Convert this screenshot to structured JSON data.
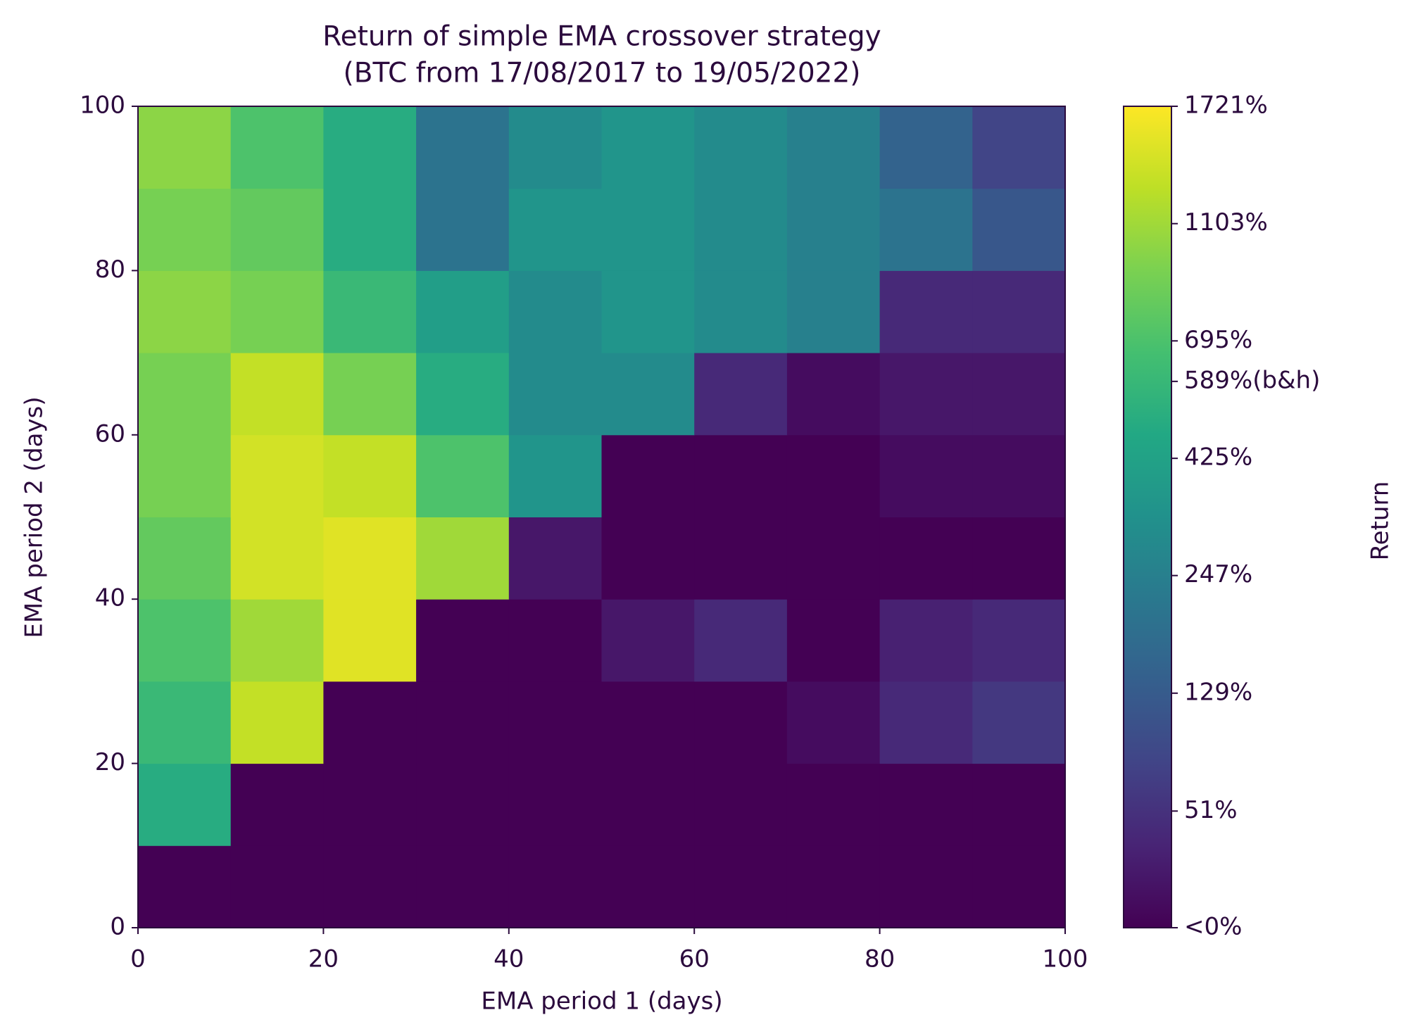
{
  "chart_data": {
    "type": "heatmap",
    "title": "Return of simple EMA crossover strategy",
    "subtitle": "(BTC from 17/08/2017 to 19/05/2022)",
    "x_label": "EMA period 1 (days)",
    "y_label": "EMA period 2 (days)",
    "x": [
      5,
      15,
      25,
      35,
      45,
      55,
      65,
      75,
      85,
      95
    ],
    "y": [
      5,
      15,
      25,
      35,
      45,
      55,
      65,
      75,
      85,
      95
    ],
    "z": [
      [
        -20,
        -20,
        -20,
        -20,
        -20,
        -20,
        -20,
        -20,
        -20,
        -20
      ],
      [
        500,
        -20,
        -20,
        -20,
        -20,
        -20,
        -20,
        -20,
        -20,
        -20
      ],
      [
        600,
        1300,
        -20,
        -20,
        -20,
        -20,
        -20,
        10,
        40,
        60
      ],
      [
        700,
        1100,
        1500,
        -20,
        -20,
        20,
        40,
        -10,
        30,
        40
      ],
      [
        800,
        1400,
        1500,
        1100,
        20,
        -10,
        -20,
        -20,
        -10,
        -10
      ],
      [
        900,
        1400,
        1300,
        700,
        350,
        -10,
        -20,
        -10,
        10,
        10
      ],
      [
        900,
        1300,
        900,
        500,
        300,
        300,
        40,
        10,
        20,
        20
      ],
      [
        1000,
        900,
        600,
        400,
        300,
        350,
        300,
        250,
        40,
        40
      ],
      [
        900,
        800,
        500,
        200,
        350,
        350,
        300,
        250,
        200,
        120
      ],
      [
        1000,
        700,
        500,
        200,
        300,
        350,
        300,
        250,
        150,
        80
      ]
    ],
    "xlim": [
      0,
      100
    ],
    "ylim": [
      0,
      100
    ],
    "xticks": [
      0,
      20,
      40,
      60,
      80,
      100
    ],
    "yticks": [
      0,
      20,
      40,
      60,
      80,
      100
    ],
    "colormap": "viridis",
    "colorbar": {
      "label": "Return",
      "scale": "log1p",
      "lim": [
        0,
        1721
      ],
      "ticks": [
        {
          "value": 0,
          "label": "<0%"
        },
        {
          "value": 51,
          "label": "51%"
        },
        {
          "value": 129,
          "label": "129%"
        },
        {
          "value": 247,
          "label": "247%"
        },
        {
          "value": 425,
          "label": "425%"
        },
        {
          "value": 589,
          "label": "589%(b&h)"
        },
        {
          "value": 695,
          "label": "695%"
        },
        {
          "value": 1103,
          "label": "1103%"
        },
        {
          "value": 1721,
          "label": "1721%"
        }
      ]
    }
  }
}
